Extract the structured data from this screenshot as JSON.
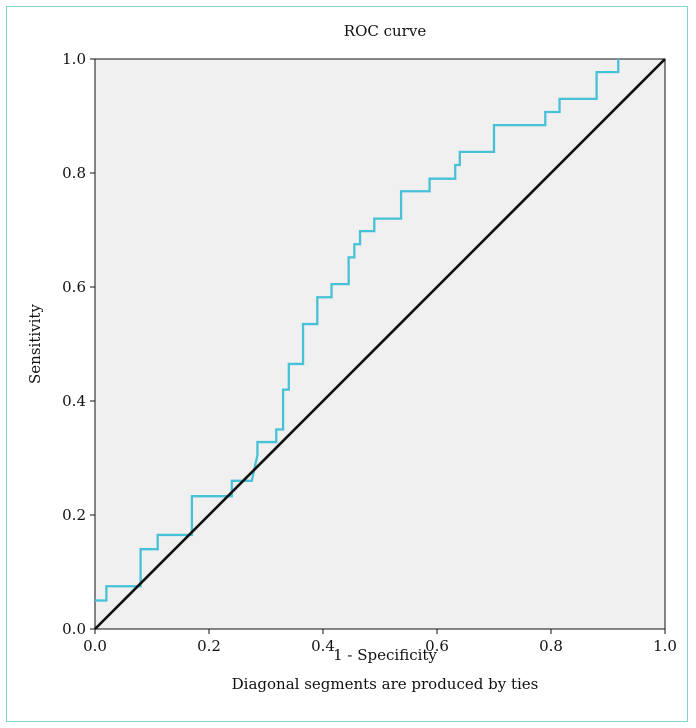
{
  "chart_data": {
    "type": "line",
    "title": "ROC curve",
    "xlabel": "1 - Specificity",
    "ylabel": "Sensitivity",
    "footnote": "Diagonal segments are produced by ties",
    "xlim": [
      0.0,
      1.0
    ],
    "ylim": [
      0.0,
      1.0
    ],
    "xticks": [
      "0.0",
      "0.2",
      "0.4",
      "0.6",
      "0.8",
      "1.0"
    ],
    "yticks": [
      "0.0",
      "0.2",
      "0.4",
      "0.6",
      "0.8",
      "1.0"
    ],
    "grid": false,
    "plot_background": "#f0f0f0",
    "series": [
      {
        "color": "#47c1d6",
        "step": true,
        "points": [
          [
            0.0,
            0.05
          ],
          [
            0.02,
            0.05
          ],
          [
            0.02,
            0.075
          ],
          [
            0.08,
            0.075
          ],
          [
            0.08,
            0.14
          ],
          [
            0.11,
            0.14
          ],
          [
            0.11,
            0.165
          ],
          [
            0.17,
            0.165
          ],
          [
            0.17,
            0.233
          ],
          [
            0.24,
            0.233
          ],
          [
            0.24,
            0.26
          ],
          [
            0.275,
            0.26
          ],
          [
            0.285,
            0.305
          ],
          [
            0.285,
            0.328
          ],
          [
            0.318,
            0.328
          ],
          [
            0.318,
            0.35
          ],
          [
            0.33,
            0.35
          ],
          [
            0.33,
            0.42
          ],
          [
            0.34,
            0.42
          ],
          [
            0.34,
            0.465
          ],
          [
            0.365,
            0.465
          ],
          [
            0.365,
            0.535
          ],
          [
            0.39,
            0.535
          ],
          [
            0.39,
            0.582
          ],
          [
            0.415,
            0.582
          ],
          [
            0.415,
            0.605
          ],
          [
            0.445,
            0.605
          ],
          [
            0.445,
            0.652
          ],
          [
            0.455,
            0.652
          ],
          [
            0.455,
            0.675
          ],
          [
            0.465,
            0.675
          ],
          [
            0.465,
            0.698
          ],
          [
            0.49,
            0.698
          ],
          [
            0.49,
            0.72
          ],
          [
            0.537,
            0.72
          ],
          [
            0.537,
            0.768
          ],
          [
            0.587,
            0.768
          ],
          [
            0.587,
            0.79
          ],
          [
            0.632,
            0.79
          ],
          [
            0.632,
            0.814
          ],
          [
            0.64,
            0.814
          ],
          [
            0.64,
            0.837
          ],
          [
            0.7,
            0.837
          ],
          [
            0.7,
            0.884
          ],
          [
            0.79,
            0.884
          ],
          [
            0.79,
            0.907
          ],
          [
            0.815,
            0.907
          ],
          [
            0.815,
            0.93
          ],
          [
            0.88,
            0.93
          ],
          [
            0.88,
            0.977
          ],
          [
            0.918,
            0.977
          ],
          [
            0.918,
            1.0
          ]
        ]
      },
      {
        "color": "#111111",
        "step": false,
        "points": [
          [
            0.0,
            0.0
          ],
          [
            1.0,
            1.0
          ]
        ]
      }
    ]
  }
}
